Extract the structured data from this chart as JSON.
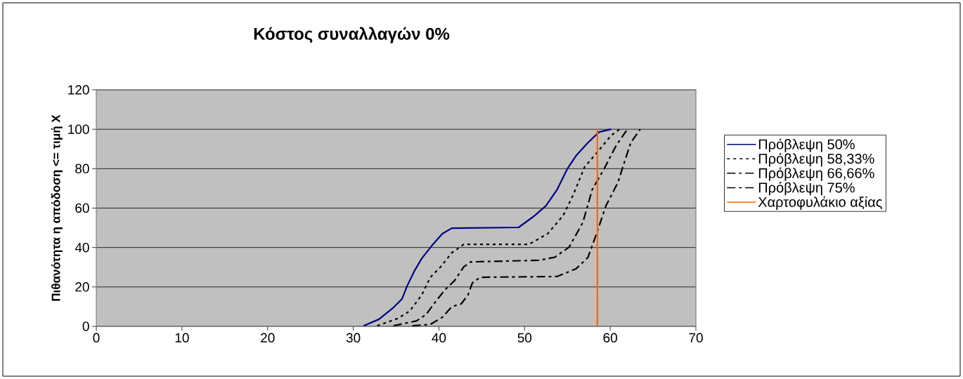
{
  "chart_data": {
    "type": "line",
    "title": "Κόστος συναλλαγών 0%",
    "ylabel": "Πιθανότητα η απόδοση <= τιμή Χ",
    "xlim": [
      0,
      70
    ],
    "xticks": [
      0,
      10,
      20,
      30,
      40,
      50,
      60,
      70
    ],
    "ylim": [
      0,
      120
    ],
    "yticks": [
      0,
      20,
      40,
      60,
      80,
      100,
      120
    ],
    "grid": "y",
    "legend": "right",
    "marker": "none",
    "series": [
      {
        "name": "Πρόβλεψη 50%",
        "color": "#000080",
        "line_style": "solid",
        "x": [
          31.2,
          33.0,
          34.7,
          35.7,
          36.3,
          37.1,
          38.0,
          39.3,
          40.4,
          41.5,
          49.3,
          51.1,
          52.5,
          53.8,
          55.0,
          56.0,
          57.4,
          58.7,
          60.1
        ],
        "values": [
          0.3,
          3.6,
          9.6,
          14,
          20.6,
          27.8,
          34.5,
          41.6,
          47,
          49.8,
          50.2,
          55.9,
          61.2,
          69.4,
          80,
          86.5,
          93.2,
          98.6,
          100
        ]
      },
      {
        "name": "Πρόβλεψη 58,33%",
        "color": "#000000",
        "line_style": "dotted",
        "x": [
          32.8,
          35.2,
          36.6,
          38.0,
          39.0,
          40.2,
          41.5,
          42.9,
          50.5,
          52.7,
          54.5,
          55.7,
          57.0,
          58.4,
          60.1,
          61.1
        ],
        "values": [
          0.3,
          4,
          7.8,
          16,
          24.9,
          30.2,
          37.3,
          41.6,
          41.6,
          47,
          56.2,
          66.9,
          80.8,
          87.9,
          96.8,
          100
        ]
      },
      {
        "name": "Πρόβλεψη 66,66%",
        "color": "#000000",
        "line_style": "dashed",
        "x": [
          34.7,
          37.4,
          38.5,
          39.6,
          40.7,
          41.8,
          42.9,
          43.7,
          51.6,
          53.5,
          55.2,
          56.8,
          57.9,
          59.3,
          60.7,
          62.0
        ],
        "values": [
          0.3,
          2.8,
          6,
          12.5,
          18.5,
          23.1,
          30.2,
          32.7,
          33.5,
          35,
          40.2,
          52.7,
          69.4,
          80,
          91.8,
          100
        ]
      },
      {
        "name": "Πρόβλεψη 75%",
        "color": "#000000",
        "line_style": "dashed",
        "x": [
          36.9,
          39.0,
          40.4,
          41.5,
          42.6,
          43.4,
          43.9,
          44.8,
          53.8,
          56.0,
          57.4,
          58.4,
          59.5,
          60.9,
          61.6,
          62.4,
          63.5
        ],
        "values": [
          0.3,
          1,
          4.6,
          10,
          11.4,
          16,
          22,
          24.9,
          25.3,
          29.2,
          35,
          47,
          61.2,
          73,
          82.6,
          93.2,
          100
        ]
      },
      {
        "name": "Χαρτοφυλάκιο αξίας",
        "color": "#ff6600",
        "line_style": "solid",
        "x": [
          58.5,
          58.5
        ],
        "values": [
          0,
          100
        ]
      }
    ]
  }
}
